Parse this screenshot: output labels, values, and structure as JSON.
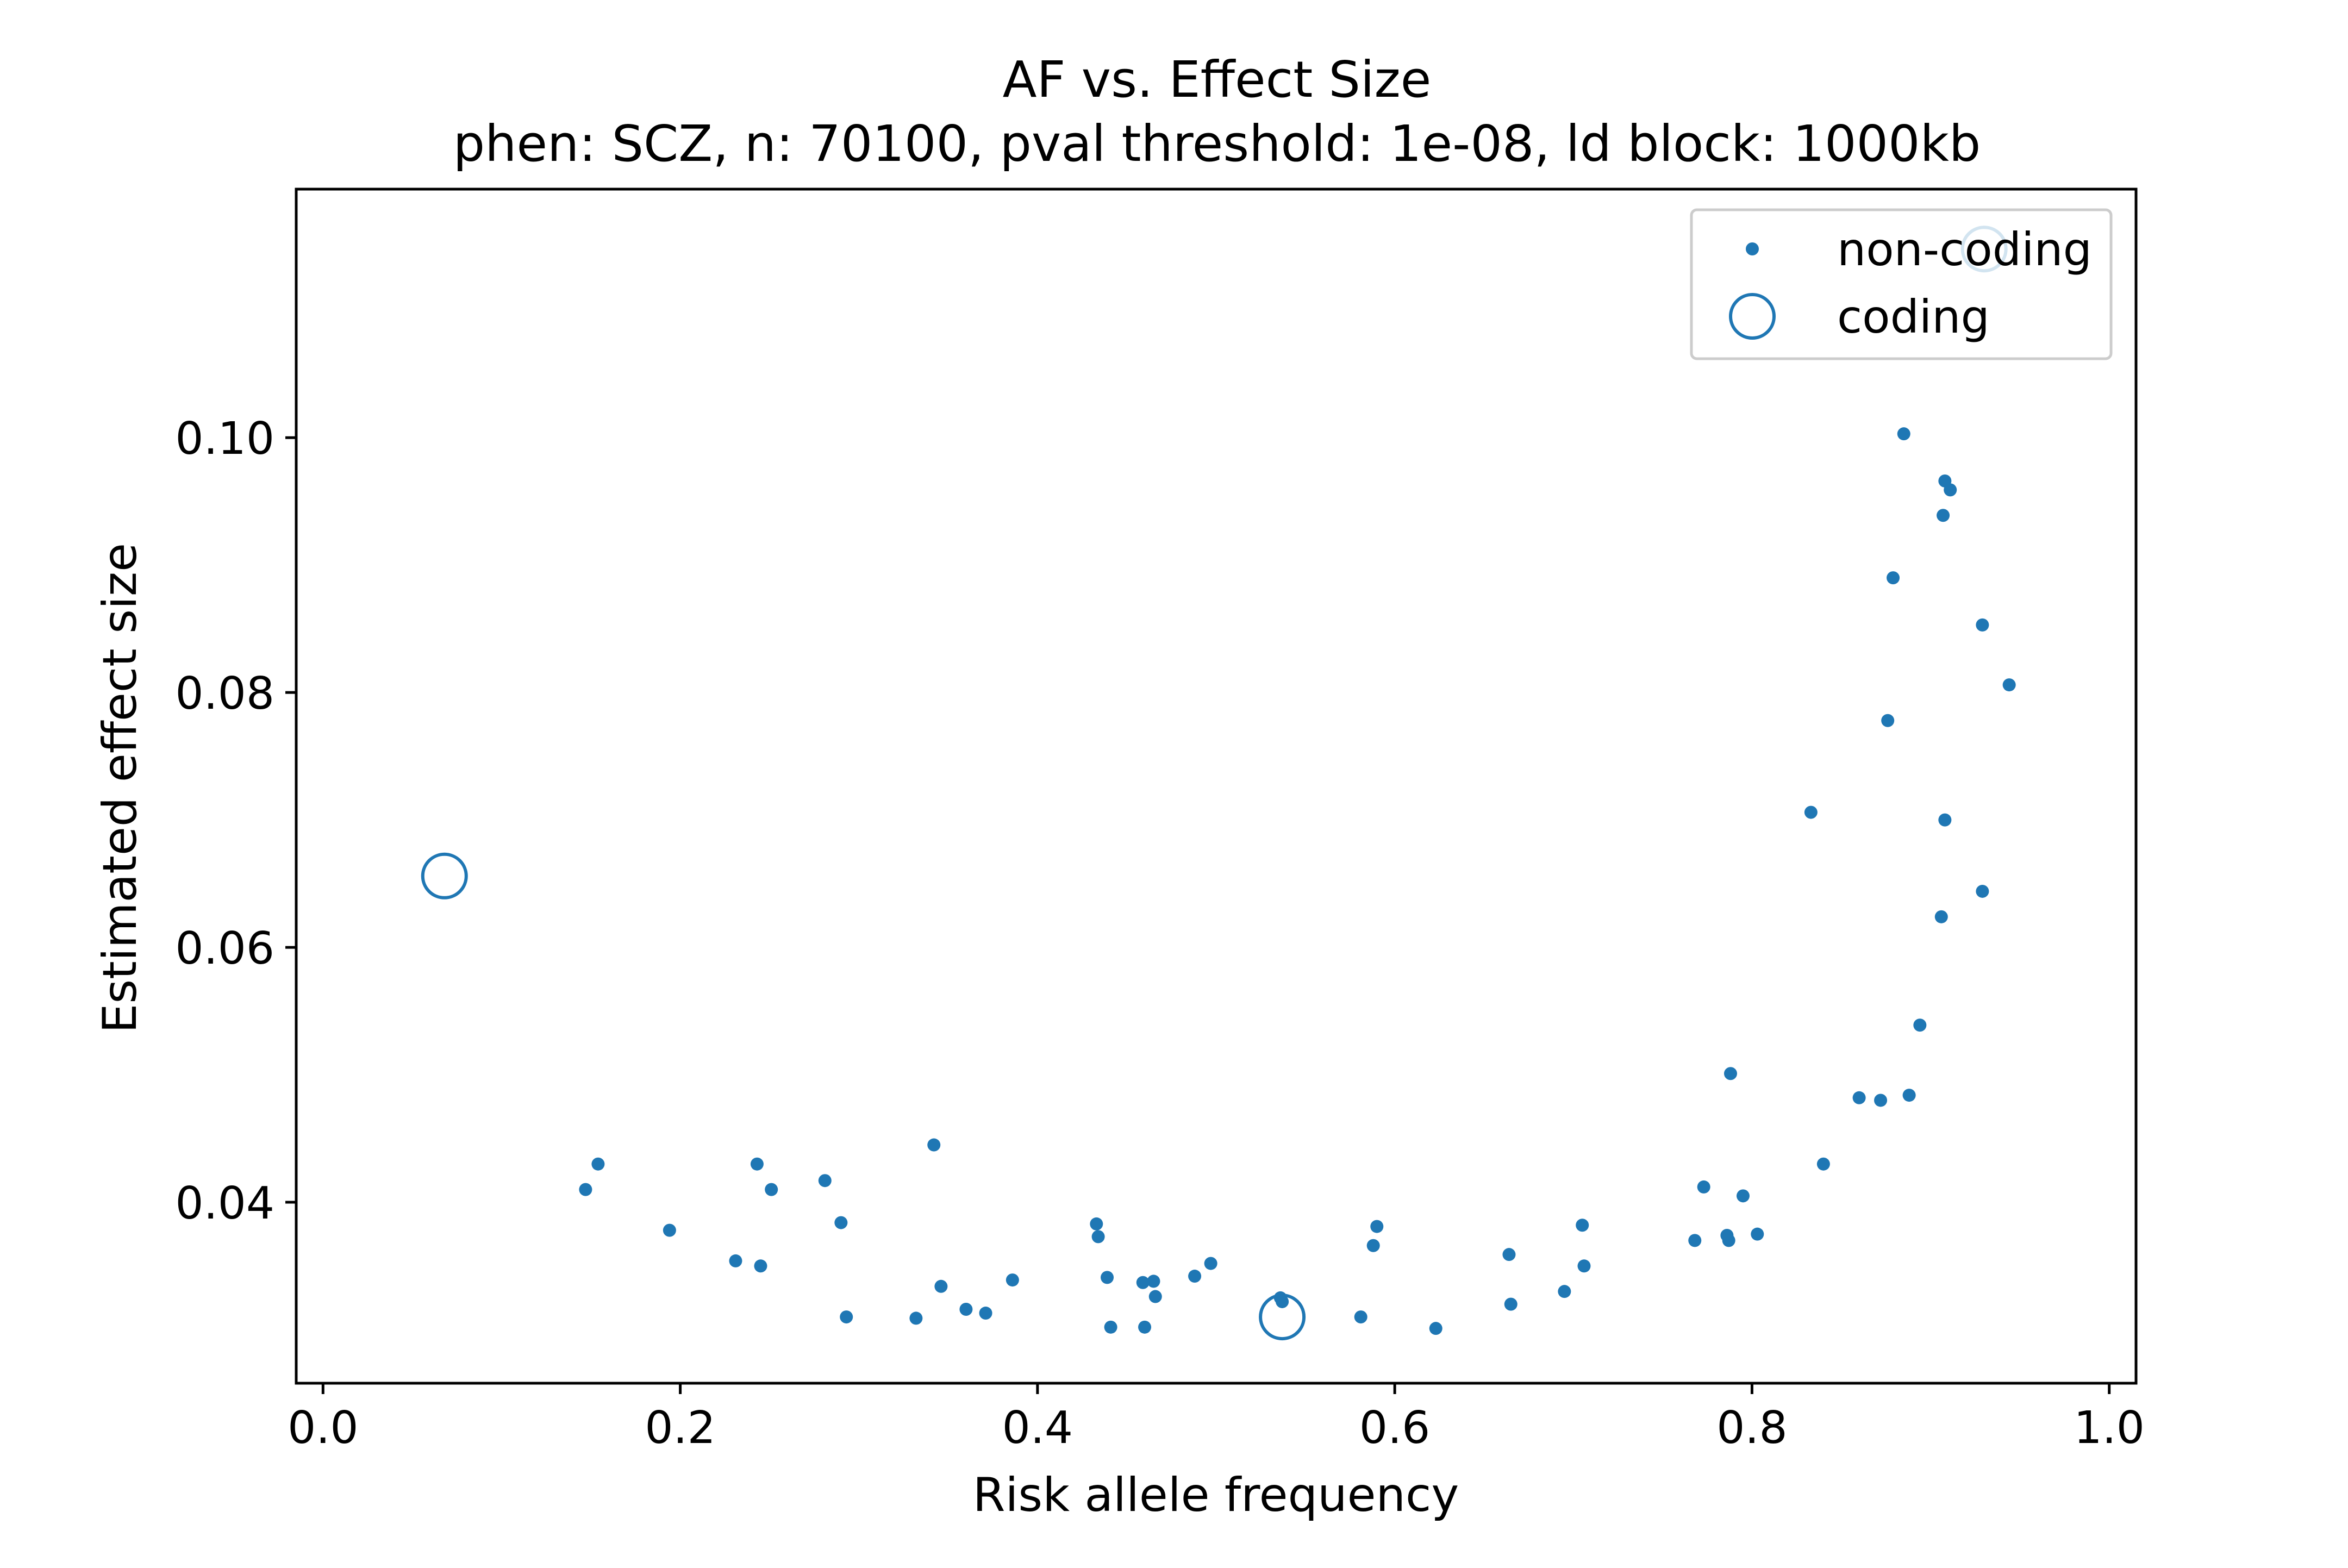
{
  "chart_data": {
    "type": "scatter",
    "title": "AF vs. Effect Size",
    "subtitle": "phen: SCZ, n: 70100, pval threshold: 1e-08, ld block: 1000kb",
    "xlabel": "Risk allele frequency",
    "ylabel": "Estimated effect size",
    "xlim": [
      -0.015,
      1.015
    ],
    "ylim": [
      0.0258,
      0.1195
    ],
    "xticks": [
      0.0,
      0.2,
      0.4,
      0.6,
      0.8,
      1.0
    ],
    "xtick_labels": [
      "0.0",
      "0.2",
      "0.4",
      "0.6",
      "0.8",
      "1.0"
    ],
    "yticks": [
      0.04,
      0.06,
      0.08,
      0.1
    ],
    "ytick_labels": [
      "0.04",
      "0.06",
      "0.08",
      "0.10"
    ],
    "grid": false,
    "legend_position": "top-right",
    "colors": {
      "series": "#1f77b4",
      "axes": "#000000",
      "legend_border": "#cccccc"
    },
    "series": [
      {
        "name": "non-coding",
        "marker": "filled-dot",
        "points": [
          [
            0.147,
            0.041
          ],
          [
            0.154,
            0.043
          ],
          [
            0.194,
            0.0378
          ],
          [
            0.231,
            0.0354
          ],
          [
            0.243,
            0.043
          ],
          [
            0.245,
            0.035
          ],
          [
            0.251,
            0.041
          ],
          [
            0.281,
            0.0417
          ],
          [
            0.29,
            0.0384
          ],
          [
            0.293,
            0.031
          ],
          [
            0.332,
            0.0309
          ],
          [
            0.342,
            0.0445
          ],
          [
            0.346,
            0.0334
          ],
          [
            0.36,
            0.0316
          ],
          [
            0.371,
            0.0313
          ],
          [
            0.386,
            0.0339
          ],
          [
            0.433,
            0.0383
          ],
          [
            0.434,
            0.0373
          ],
          [
            0.439,
            0.0341
          ],
          [
            0.441,
            0.0302
          ],
          [
            0.459,
            0.0337
          ],
          [
            0.46,
            0.0302
          ],
          [
            0.465,
            0.0338
          ],
          [
            0.466,
            0.0326
          ],
          [
            0.488,
            0.0342
          ],
          [
            0.497,
            0.0352
          ],
          [
            0.536,
            0.0325
          ],
          [
            0.537,
            0.0322
          ],
          [
            0.581,
            0.031
          ],
          [
            0.588,
            0.0366
          ],
          [
            0.59,
            0.0381
          ],
          [
            0.623,
            0.0301
          ],
          [
            0.664,
            0.0359
          ],
          [
            0.665,
            0.032
          ],
          [
            0.695,
            0.033
          ],
          [
            0.705,
            0.0382
          ],
          [
            0.706,
            0.035
          ],
          [
            0.768,
            0.037
          ],
          [
            0.773,
            0.0412
          ],
          [
            0.786,
            0.0374
          ],
          [
            0.787,
            0.037
          ],
          [
            0.788,
            0.0501
          ],
          [
            0.795,
            0.0405
          ],
          [
            0.803,
            0.0375
          ],
          [
            0.833,
            0.0706
          ],
          [
            0.84,
            0.043
          ],
          [
            0.86,
            0.0482
          ],
          [
            0.872,
            0.048
          ],
          [
            0.876,
            0.0778
          ],
          [
            0.879,
            0.089
          ],
          [
            0.885,
            0.1003
          ],
          [
            0.888,
            0.0484
          ],
          [
            0.894,
            0.0539
          ],
          [
            0.906,
            0.0624
          ],
          [
            0.907,
            0.0939
          ],
          [
            0.908,
            0.0966
          ],
          [
            0.908,
            0.07
          ],
          [
            0.911,
            0.0959
          ],
          [
            0.929,
            0.0853
          ],
          [
            0.929,
            0.0644
          ],
          [
            0.944,
            0.0806
          ]
        ]
      },
      {
        "name": "coding",
        "marker": "open-circle",
        "points": [
          [
            0.068,
            0.0656
          ],
          [
            0.537,
            0.031
          ],
          [
            0.93,
            0.1148
          ]
        ]
      }
    ]
  }
}
